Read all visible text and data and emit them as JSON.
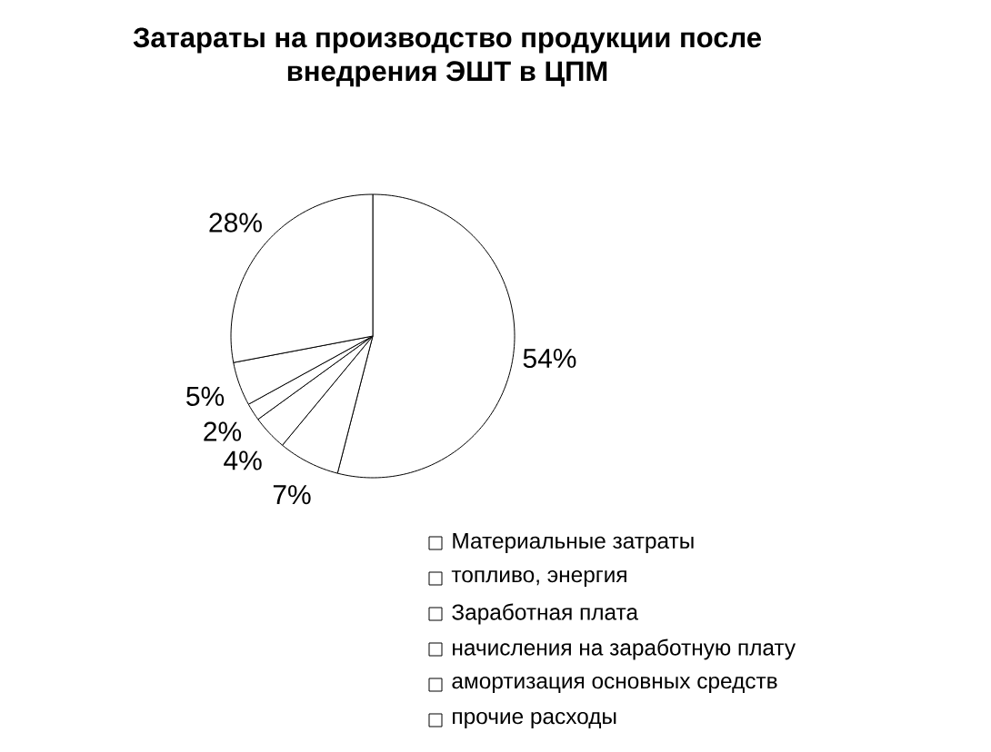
{
  "chart_data": {
    "type": "pie",
    "title": "Затараты на производство продукции после внедрения ЭШТ в ЦПМ",
    "categories": [
      "Материальные затраты",
      "топливо, энергия",
      "Заработная плата",
      "начисления на заработную плату",
      "амортизация основных средств",
      "прочие расходы"
    ],
    "values": [
      54,
      7,
      4,
      2,
      5,
      28
    ],
    "colors": [
      "#ffffff",
      "#ffffff",
      "#ffffff",
      "#ffffff",
      "#ffffff",
      "#ffffff"
    ],
    "value_labels": [
      "54%",
      "7%",
      "4%",
      "2%",
      "5%",
      "28%"
    ],
    "legend": "bottom right"
  }
}
